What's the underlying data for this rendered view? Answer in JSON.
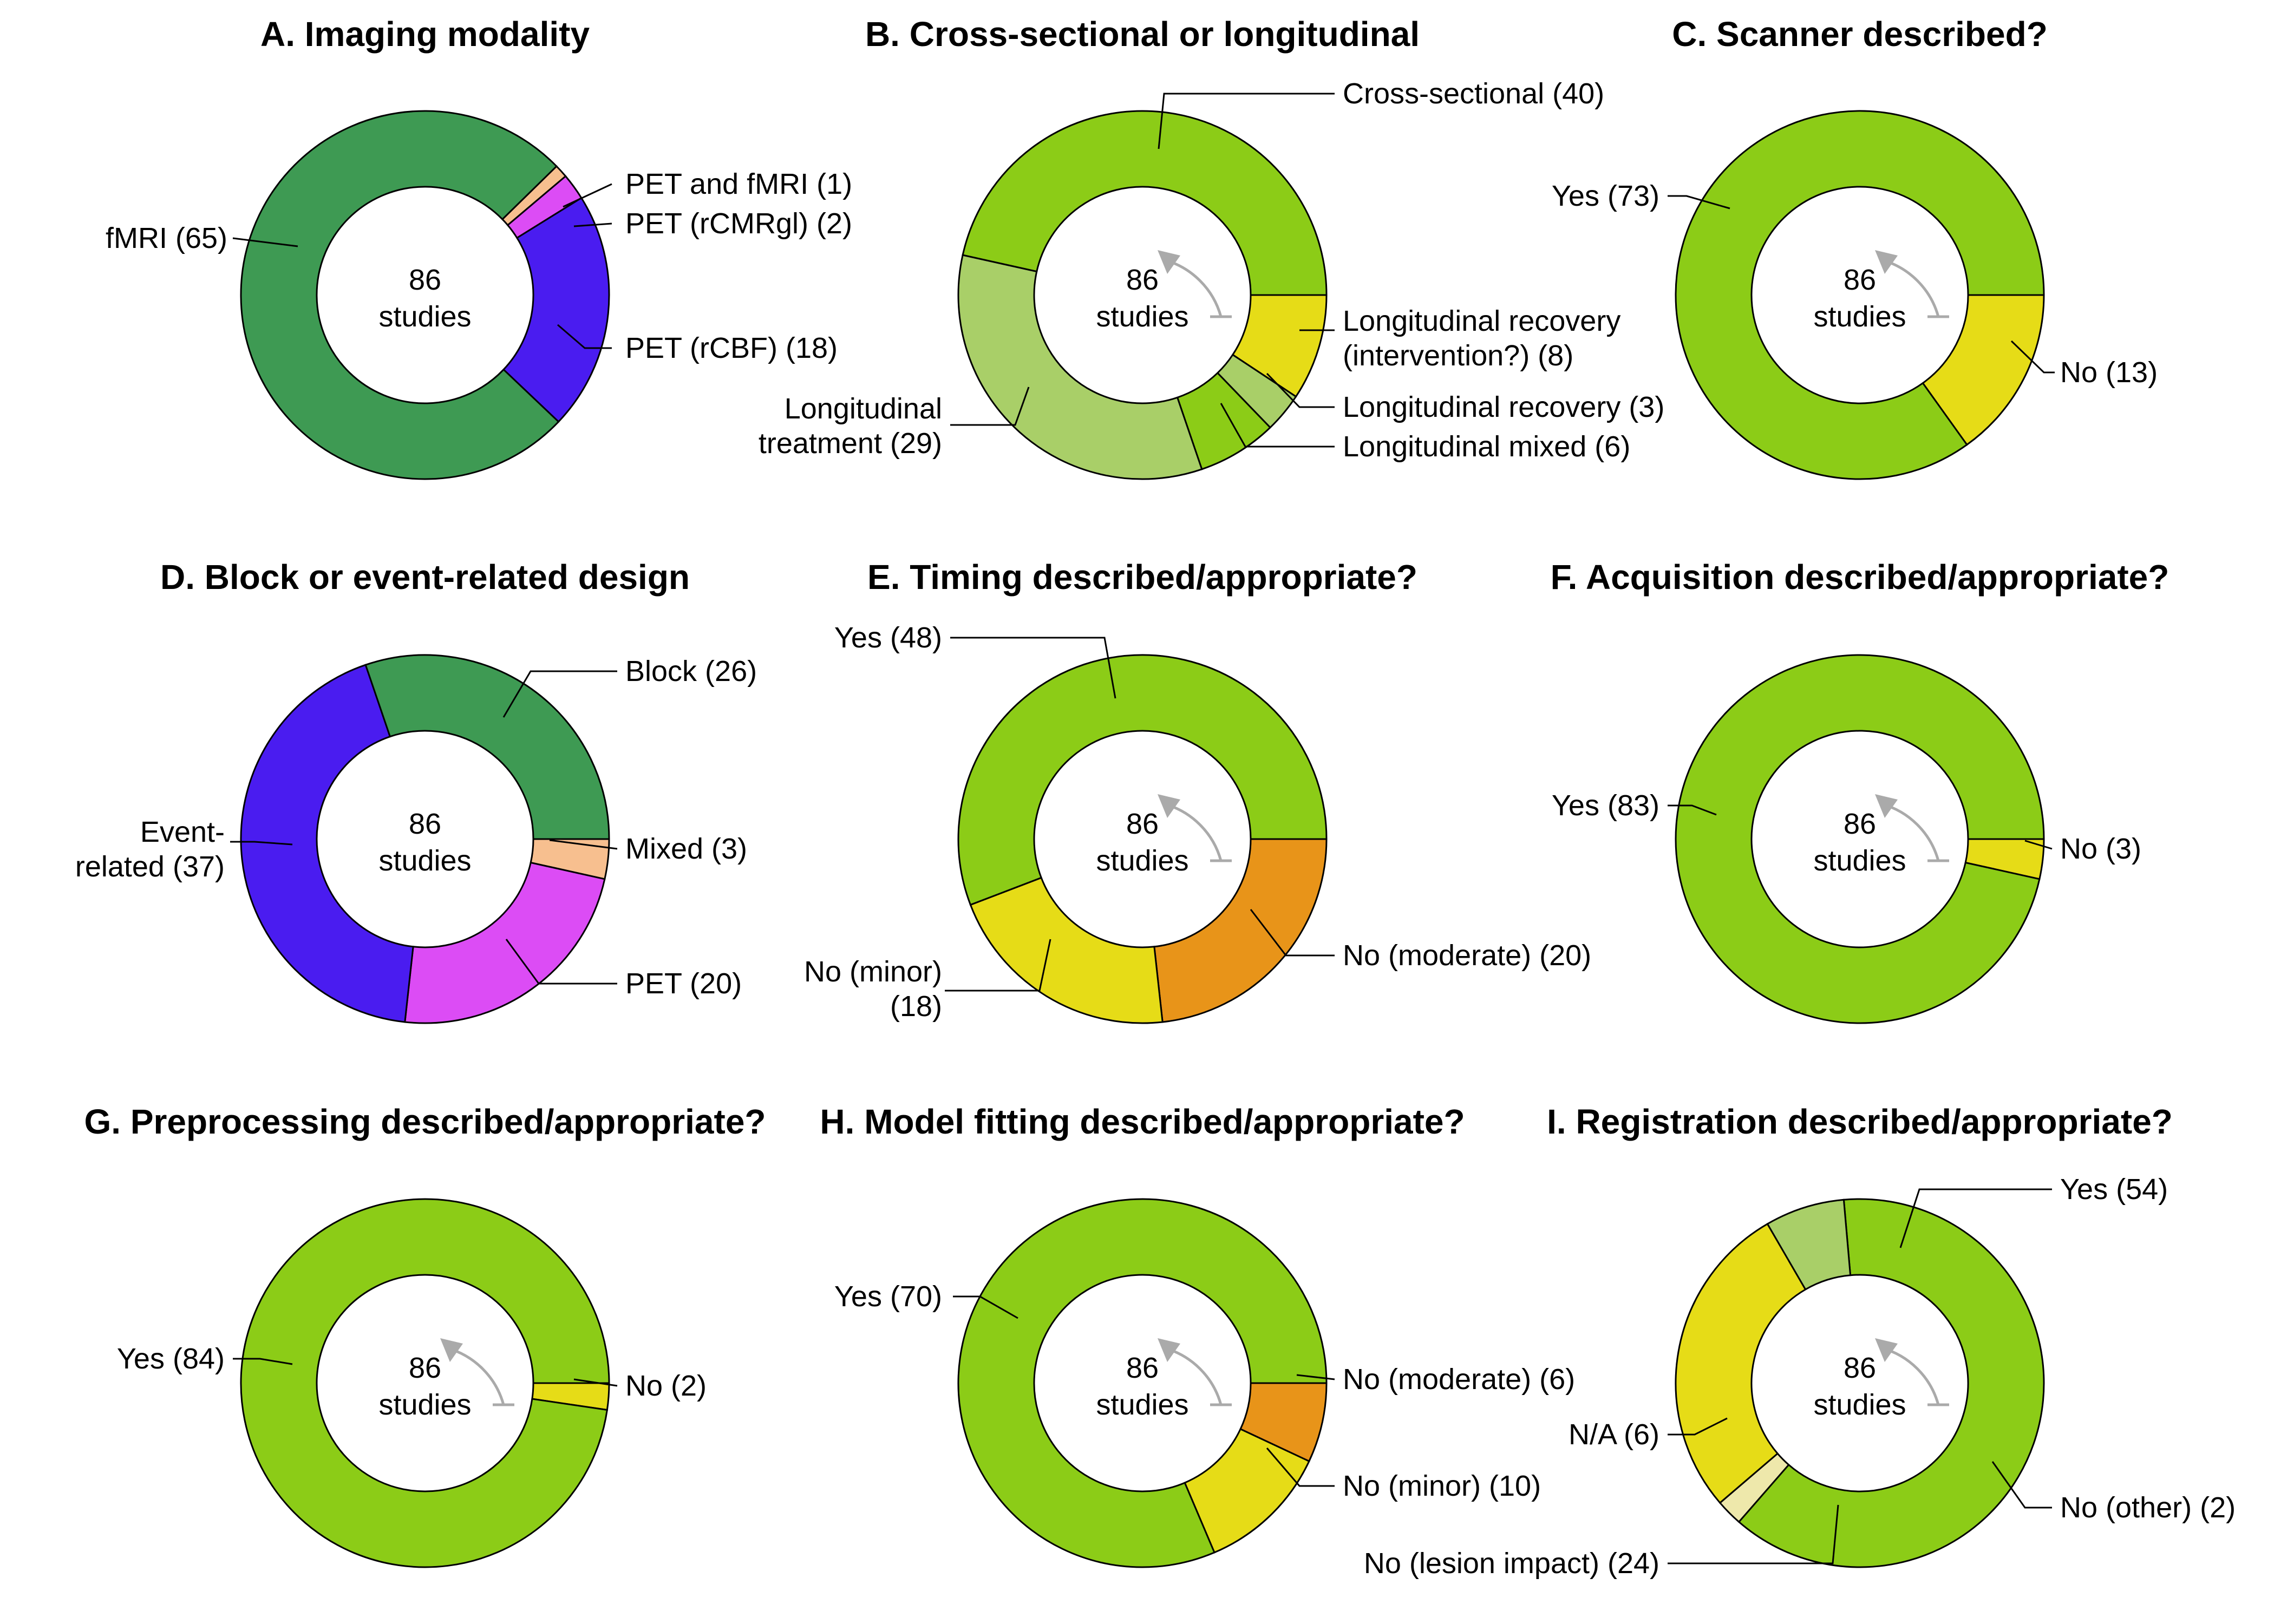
{
  "colors": {
    "green_dark": "#3e9a53",
    "green": "#8ccc17",
    "green_light": "#a9cf68",
    "yellow": "#e6dc17",
    "yellow_pale": "#eee8ab",
    "orange": "#e89419",
    "peach": "#f7bf8f",
    "magenta": "#dc4cf5",
    "blue": "#4a1cf0",
    "outline": "#000000",
    "arrow": "#aaaaaa"
  },
  "chart_data": [
    {
      "type": "pie",
      "title": "A. Imaging modality",
      "center_text": [
        "86",
        "studies"
      ],
      "has_arrow": false,
      "slices": [
        {
          "label": "PET and fMRI (1)",
          "value": 1,
          "color": "peach"
        },
        {
          "label": "PET (rCMRgl) (2)",
          "value": 2,
          "color": "magenta"
        },
        {
          "label": "PET (rCBF) (18)",
          "value": 18,
          "color": "blue"
        },
        {
          "label": "fMRI (65)",
          "value": 65,
          "color": "green_dark"
        }
      ]
    },
    {
      "type": "pie",
      "title": "B. Cross-sectional or longitudinal",
      "center_text": [
        "86",
        "studies"
      ],
      "has_arrow": true,
      "slices": [
        {
          "label": "Longitudinal recovery (intervention?) (8)",
          "value": 8,
          "color": "yellow"
        },
        {
          "label": "Longitudinal recovery (3)",
          "value": 3,
          "color": "green_light"
        },
        {
          "label": "Longitudinal mixed (6)",
          "value": 6,
          "color": "green"
        },
        {
          "label": "Longitudinal treatment (29)",
          "value": 29,
          "color": "green_light"
        },
        {
          "label": "Cross-sectional (40)",
          "value": 40,
          "color": "green"
        }
      ]
    },
    {
      "type": "pie",
      "title": "C. Scanner described?",
      "center_text": [
        "86",
        "studies"
      ],
      "has_arrow": true,
      "slices": [
        {
          "label": "No (13)",
          "value": 13,
          "color": "yellow"
        },
        {
          "label": "Yes (73)",
          "value": 73,
          "color": "green"
        }
      ]
    },
    {
      "type": "pie",
      "title": "D. Block or event-related design",
      "center_text": [
        "86",
        "studies"
      ],
      "has_arrow": false,
      "slices": [
        {
          "label": "Mixed (3)",
          "value": 3,
          "color": "peach"
        },
        {
          "label": "PET (20)",
          "value": 20,
          "color": "magenta"
        },
        {
          "label": "Event-related (37)",
          "value": 37,
          "color": "blue"
        },
        {
          "label": "Block (26)",
          "value": 26,
          "color": "green_dark"
        }
      ]
    },
    {
      "type": "pie",
      "title": "E. Timing described/appropriate?",
      "center_text": [
        "86",
        "studies"
      ],
      "has_arrow": true,
      "slices": [
        {
          "label": "No (moderate) (20)",
          "value": 20,
          "color": "orange"
        },
        {
          "label": "No (minor) (18)",
          "value": 18,
          "color": "yellow"
        },
        {
          "label": "Yes (48)",
          "value": 48,
          "color": "green"
        }
      ]
    },
    {
      "type": "pie",
      "title": "F. Acquisition described/appropriate?",
      "center_text": [
        "86",
        "studies"
      ],
      "has_arrow": true,
      "slices": [
        {
          "label": "No (3)",
          "value": 3,
          "color": "yellow"
        },
        {
          "label": "Yes (83)",
          "value": 83,
          "color": "green"
        }
      ]
    },
    {
      "type": "pie",
      "title": "G. Preprocessing described/appropriate?",
      "center_text": [
        "86",
        "studies"
      ],
      "has_arrow": true,
      "slices": [
        {
          "label": "No (2)",
          "value": 2,
          "color": "yellow"
        },
        {
          "label": "Yes (84)",
          "value": 84,
          "color": "green"
        }
      ]
    },
    {
      "type": "pie",
      "title": "H. Model fitting described/appropriate?",
      "center_text": [
        "86",
        "studies"
      ],
      "has_arrow": true,
      "slices": [
        {
          "label": "No (moderate) (6)",
          "value": 6,
          "color": "orange"
        },
        {
          "label": "No (minor) (10)",
          "value": 10,
          "color": "yellow"
        },
        {
          "label": "Yes (70)",
          "value": 70,
          "color": "green"
        }
      ]
    },
    {
      "type": "pie",
      "title": "I. Registration described/appropriate?",
      "center_text": [
        "86",
        "studies"
      ],
      "has_arrow": true,
      "slices": [
        {
          "label": "Yes (54)",
          "value": 54,
          "color": "green"
        },
        {
          "label": "No (other) (2)",
          "value": 2,
          "color": "yellow_pale"
        },
        {
          "label": "No (lesion impact) (24)",
          "value": 24,
          "color": "yellow"
        },
        {
          "label": "N/A (6)",
          "value": 6,
          "color": "green_light"
        }
      ]
    }
  ]
}
